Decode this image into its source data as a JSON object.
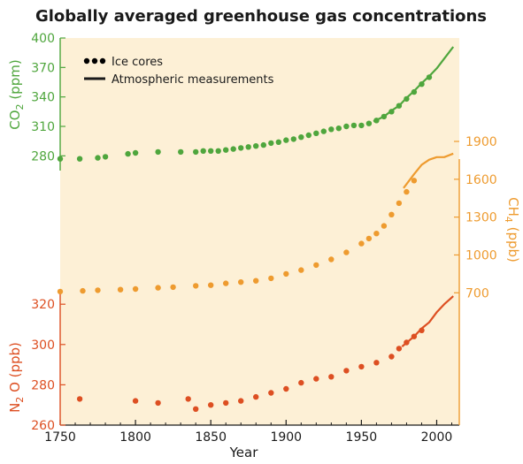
{
  "chart_data": {
    "type": "scatter",
    "title": "Globally averaged greenhouse gas concentrations",
    "xlabel": "Year",
    "xlim": [
      1750,
      2015
    ],
    "x_ticks": [
      1750,
      1800,
      1850,
      1900,
      1950,
      2000
    ],
    "legend": {
      "placement": "top-left",
      "items": [
        {
          "label": "Ice cores",
          "marker": "dots"
        },
        {
          "label": "Atmospheric measurements",
          "marker": "line"
        }
      ]
    },
    "colors": {
      "background": "#fdf0d6",
      "co2": "#4fa63d",
      "ch4": "#ee9b2f",
      "n2o": "#dd4f22"
    },
    "series": [
      {
        "name": "CO2",
        "ylabel_main": "CO",
        "ylabel_sub": "2",
        "ylabel_unit": "(ppm)",
        "axis_side": "left",
        "ylim": [
          265,
          400
        ],
        "y_ticks": [
          280,
          310,
          340,
          370,
          400
        ],
        "ice_cores": [
          [
            1750,
            277
          ],
          [
            1763,
            277
          ],
          [
            1775,
            278
          ],
          [
            1780,
            279
          ],
          [
            1795,
            282
          ],
          [
            1800,
            283
          ],
          [
            1815,
            284
          ],
          [
            1830,
            284
          ],
          [
            1840,
            284
          ],
          [
            1845,
            285
          ],
          [
            1850,
            285
          ],
          [
            1855,
            285
          ],
          [
            1860,
            286
          ],
          [
            1865,
            287
          ],
          [
            1870,
            288
          ],
          [
            1875,
            289
          ],
          [
            1880,
            290
          ],
          [
            1885,
            291
          ],
          [
            1890,
            293
          ],
          [
            1895,
            294
          ],
          [
            1900,
            296
          ],
          [
            1905,
            297
          ],
          [
            1910,
            299
          ],
          [
            1915,
            301
          ],
          [
            1920,
            303
          ],
          [
            1925,
            305
          ],
          [
            1930,
            307
          ],
          [
            1935,
            308
          ],
          [
            1940,
            310
          ],
          [
            1945,
            311
          ],
          [
            1950,
            311
          ],
          [
            1955,
            313
          ],
          [
            1960,
            316
          ],
          [
            1965,
            320
          ],
          [
            1970,
            325
          ],
          [
            1975,
            331
          ],
          [
            1980,
            338
          ],
          [
            1985,
            345
          ],
          [
            1990,
            353
          ],
          [
            1995,
            360
          ]
        ],
        "atmospheric": [
          [
            1958,
            315
          ],
          [
            1965,
            320
          ],
          [
            1970,
            326
          ],
          [
            1975,
            331
          ],
          [
            1980,
            339
          ],
          [
            1985,
            346
          ],
          [
            1990,
            354
          ],
          [
            1995,
            361
          ],
          [
            2000,
            369
          ],
          [
            2005,
            379
          ],
          [
            2011,
            391
          ]
        ]
      },
      {
        "name": "CH4",
        "ylabel_main": "CH",
        "ylabel_sub": "4",
        "ylabel_unit": "(ppb)",
        "axis_side": "right",
        "ylim": [
          660,
          1900
        ],
        "y_ticks": [
          700,
          1000,
          1300,
          1600,
          1900
        ],
        "ice_cores": [
          [
            1750,
            710
          ],
          [
            1765,
            715
          ],
          [
            1775,
            720
          ],
          [
            1790,
            725
          ],
          [
            1800,
            730
          ],
          [
            1815,
            740
          ],
          [
            1825,
            745
          ],
          [
            1840,
            755
          ],
          [
            1850,
            760
          ],
          [
            1860,
            775
          ],
          [
            1870,
            785
          ],
          [
            1880,
            795
          ],
          [
            1890,
            815
          ],
          [
            1900,
            850
          ],
          [
            1910,
            880
          ],
          [
            1920,
            920
          ],
          [
            1930,
            965
          ],
          [
            1940,
            1020
          ],
          [
            1950,
            1090
          ],
          [
            1955,
            1130
          ],
          [
            1960,
            1170
          ],
          [
            1965,
            1230
          ],
          [
            1970,
            1320
          ],
          [
            1975,
            1410
          ],
          [
            1980,
            1500
          ],
          [
            1985,
            1590
          ]
        ],
        "atmospheric": [
          [
            1978,
            1530
          ],
          [
            1985,
            1640
          ],
          [
            1990,
            1715
          ],
          [
            1995,
            1755
          ],
          [
            2000,
            1775
          ],
          [
            2005,
            1775
          ],
          [
            2011,
            1803
          ]
        ]
      },
      {
        "name": "N2O",
        "ylabel_main": "N",
        "ylabel_sub": "2",
        "ylabel_unit": "O (ppb)",
        "axis_side": "left",
        "ylim": [
          260,
          335
        ],
        "y_ticks": [
          260,
          280,
          300,
          320
        ],
        "ice_cores": [
          [
            1763,
            273
          ],
          [
            1800,
            272
          ],
          [
            1815,
            271
          ],
          [
            1835,
            273
          ],
          [
            1840,
            268
          ],
          [
            1850,
            270
          ],
          [
            1860,
            271
          ],
          [
            1870,
            272
          ],
          [
            1880,
            274
          ],
          [
            1890,
            276
          ],
          [
            1900,
            278
          ],
          [
            1910,
            281
          ],
          [
            1920,
            283
          ],
          [
            1930,
            284
          ],
          [
            1940,
            287
          ],
          [
            1950,
            289
          ],
          [
            1960,
            291
          ],
          [
            1970,
            294
          ],
          [
            1975,
            298
          ],
          [
            1980,
            301
          ],
          [
            1985,
            304
          ],
          [
            1990,
            307
          ]
        ],
        "atmospheric": [
          [
            1977,
            299
          ],
          [
            1985,
            304
          ],
          [
            1990,
            308
          ],
          [
            1995,
            311
          ],
          [
            2000,
            316
          ],
          [
            2005,
            320
          ],
          [
            2011,
            324
          ]
        ]
      }
    ]
  }
}
